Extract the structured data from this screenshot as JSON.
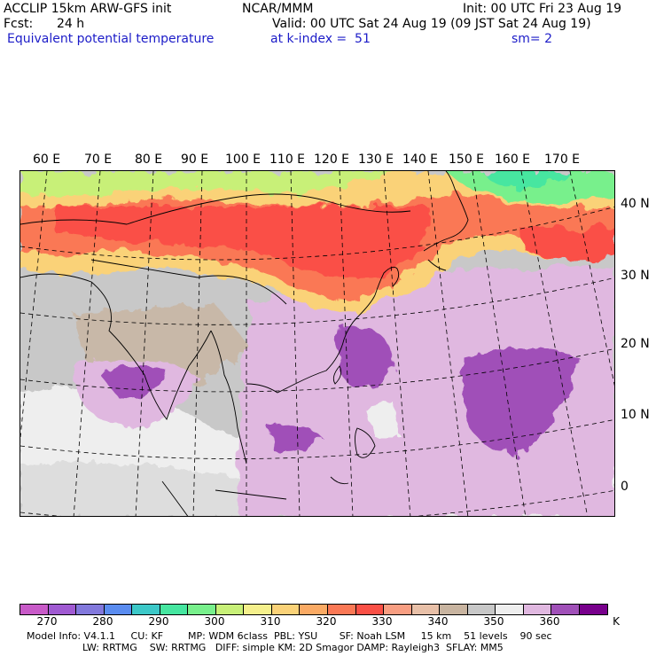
{
  "header": {
    "model": "ACCLIP 15km ARW-GFS init",
    "center": "NCAR/MMM",
    "init": "Init: 00 UTC Fri 23 Aug 19",
    "fcst_label": "Fcst:",
    "fcst_value": "24 h",
    "valid": "Valid: 00 UTC Sat 24 Aug 19 (09 JST Sat 24 Aug 19)",
    "field": "Equivalent potential temperature",
    "level": "at k-index =  51",
    "smoothing": "sm= 2"
  },
  "map": {
    "lon_labels": [
      "60 E",
      "70 E",
      "80 E",
      "90 E",
      "100 E",
      "110 E",
      "120 E",
      "130 E",
      "140 E",
      "150 E",
      "160 E",
      "170 E"
    ],
    "lat_labels": [
      "40 N",
      "30 N",
      "20 N",
      "10 N",
      "0"
    ]
  },
  "colorbar": {
    "unit": "K",
    "colors": [
      "#c85ac8",
      "#a05ad2",
      "#8278dc",
      "#5a8cf0",
      "#3cc8c8",
      "#46e6a0",
      "#78f08c",
      "#c8f078",
      "#f5f08c",
      "#fad278",
      "#faaa64",
      "#fa7855",
      "#fa5046",
      "#f89e82",
      "#e8c0a8",
      "#c8b4a0",
      "#c8c8c8",
      "#eeeeee",
      "#e0b8e0",
      "#a050b8",
      "#78008c"
    ],
    "labels": [
      "270",
      "280",
      "290",
      "300",
      "310",
      "320",
      "330",
      "340",
      "350",
      "360"
    ]
  },
  "footer": {
    "line1": "Model Info: V4.1.1     CU: KF        MP: WDM 6class  PBL: YSU       SF: Noah LSM     15 km    51 levels    90 sec",
    "line2": "                  LW: RRTMG    SW: RRTMG   DIFF: simple KM: 2D Smagor DAMP: Rayleigh3  SFLAY: MM5"
  }
}
